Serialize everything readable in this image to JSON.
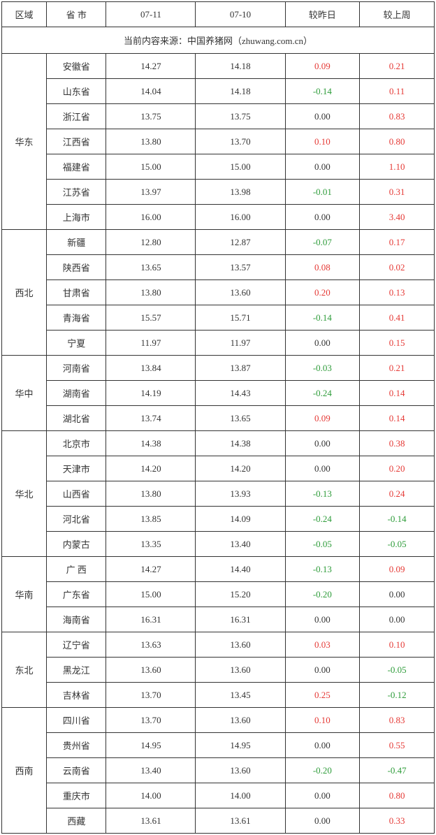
{
  "headers": {
    "region": "区域",
    "province": "省 市",
    "d1": "07-11",
    "d2": "07-10",
    "vs_yesterday": "较昨日",
    "vs_lastweek": "较上周"
  },
  "source": "当前内容来源：中国养猪网（zhuwang.com.cn）",
  "regions": [
    {
      "name": "华东",
      "rows": [
        {
          "prov": "安徽省",
          "d1": "14.27",
          "d2": "14.18",
          "dy": "0.09",
          "dyDir": "up",
          "dw": "0.21",
          "dwDir": "up"
        },
        {
          "prov": "山东省",
          "d1": "14.04",
          "d2": "14.18",
          "dy": "-0.14",
          "dyDir": "down",
          "dw": "0.11",
          "dwDir": "up"
        },
        {
          "prov": "浙江省",
          "d1": "13.75",
          "d2": "13.75",
          "dy": "0.00",
          "dyDir": "zero",
          "dw": "0.83",
          "dwDir": "up"
        },
        {
          "prov": "江西省",
          "d1": "13.80",
          "d2": "13.70",
          "dy": "0.10",
          "dyDir": "up",
          "dw": "0.80",
          "dwDir": "up"
        },
        {
          "prov": "福建省",
          "d1": "15.00",
          "d2": "15.00",
          "dy": "0.00",
          "dyDir": "zero",
          "dw": "1.10",
          "dwDir": "up"
        },
        {
          "prov": "江苏省",
          "d1": "13.97",
          "d2": "13.98",
          "dy": "-0.01",
          "dyDir": "down",
          "dw": "0.31",
          "dwDir": "up"
        },
        {
          "prov": "上海市",
          "d1": "16.00",
          "d2": "16.00",
          "dy": "0.00",
          "dyDir": "zero",
          "dw": "3.40",
          "dwDir": "up"
        }
      ]
    },
    {
      "name": "西北",
      "rows": [
        {
          "prov": "新疆",
          "d1": "12.80",
          "d2": "12.87",
          "dy": "-0.07",
          "dyDir": "down",
          "dw": "0.17",
          "dwDir": "up"
        },
        {
          "prov": "陕西省",
          "d1": "13.65",
          "d2": "13.57",
          "dy": "0.08",
          "dyDir": "up",
          "dw": "0.02",
          "dwDir": "up"
        },
        {
          "prov": "甘肃省",
          "d1": "13.80",
          "d2": "13.60",
          "dy": "0.20",
          "dyDir": "up",
          "dw": "0.13",
          "dwDir": "up"
        },
        {
          "prov": "青海省",
          "d1": "15.57",
          "d2": "15.71",
          "dy": "-0.14",
          "dyDir": "down",
          "dw": "0.41",
          "dwDir": "up"
        },
        {
          "prov": "宁夏",
          "d1": "11.97",
          "d2": "11.97",
          "dy": "0.00",
          "dyDir": "zero",
          "dw": "0.15",
          "dwDir": "up"
        }
      ]
    },
    {
      "name": "华中",
      "rows": [
        {
          "prov": "河南省",
          "d1": "13.84",
          "d2": "13.87",
          "dy": "-0.03",
          "dyDir": "down",
          "dw": "0.21",
          "dwDir": "up"
        },
        {
          "prov": "湖南省",
          "d1": "14.19",
          "d2": "14.43",
          "dy": "-0.24",
          "dyDir": "down",
          "dw": "0.14",
          "dwDir": "up"
        },
        {
          "prov": "湖北省",
          "d1": "13.74",
          "d2": "13.65",
          "dy": "0.09",
          "dyDir": "up",
          "dw": "0.14",
          "dwDir": "up"
        }
      ]
    },
    {
      "name": "华北",
      "rows": [
        {
          "prov": "北京市",
          "d1": "14.38",
          "d2": "14.38",
          "dy": "0.00",
          "dyDir": "zero",
          "dw": "0.38",
          "dwDir": "up"
        },
        {
          "prov": "天津市",
          "d1": "14.20",
          "d2": "14.20",
          "dy": "0.00",
          "dyDir": "zero",
          "dw": "0.20",
          "dwDir": "up"
        },
        {
          "prov": "山西省",
          "d1": "13.80",
          "d2": "13.93",
          "dy": "-0.13",
          "dyDir": "down",
          "dw": "0.24",
          "dwDir": "up"
        },
        {
          "prov": "河北省",
          "d1": "13.85",
          "d2": "14.09",
          "dy": "-0.24",
          "dyDir": "down",
          "dw": "-0.14",
          "dwDir": "down"
        },
        {
          "prov": "内蒙古",
          "d1": "13.35",
          "d2": "13.40",
          "dy": "-0.05",
          "dyDir": "down",
          "dw": "-0.05",
          "dwDir": "down"
        }
      ]
    },
    {
      "name": "华南",
      "rows": [
        {
          "prov": "广 西",
          "d1": "14.27",
          "d2": "14.40",
          "dy": "-0.13",
          "dyDir": "down",
          "dw": "0.09",
          "dwDir": "up"
        },
        {
          "prov": "广东省",
          "d1": "15.00",
          "d2": "15.20",
          "dy": "-0.20",
          "dyDir": "down",
          "dw": "0.00",
          "dwDir": "zero"
        },
        {
          "prov": "海南省",
          "d1": "16.31",
          "d2": "16.31",
          "dy": "0.00",
          "dyDir": "zero",
          "dw": "0.00",
          "dwDir": "zero"
        }
      ]
    },
    {
      "name": "东北",
      "rows": [
        {
          "prov": "辽宁省",
          "d1": "13.63",
          "d2": "13.60",
          "dy": "0.03",
          "dyDir": "up",
          "dw": "0.10",
          "dwDir": "up"
        },
        {
          "prov": "黑龙江",
          "d1": "13.60",
          "d2": "13.60",
          "dy": "0.00",
          "dyDir": "zero",
          "dw": "-0.05",
          "dwDir": "down"
        },
        {
          "prov": "吉林省",
          "d1": "13.70",
          "d2": "13.45",
          "dy": "0.25",
          "dyDir": "up",
          "dw": "-0.12",
          "dwDir": "down"
        }
      ]
    },
    {
      "name": "西南",
      "rows": [
        {
          "prov": "四川省",
          "d1": "13.70",
          "d2": "13.60",
          "dy": "0.10",
          "dyDir": "up",
          "dw": "0.83",
          "dwDir": "up"
        },
        {
          "prov": "贵州省",
          "d1": "14.95",
          "d2": "14.95",
          "dy": "0.00",
          "dyDir": "zero",
          "dw": "0.55",
          "dwDir": "up"
        },
        {
          "prov": "云南省",
          "d1": "13.40",
          "d2": "13.60",
          "dy": "-0.20",
          "dyDir": "down",
          "dw": "-0.47",
          "dwDir": "down"
        },
        {
          "prov": "重庆市",
          "d1": "14.00",
          "d2": "14.00",
          "dy": "0.00",
          "dyDir": "zero",
          "dw": "0.80",
          "dwDir": "up"
        },
        {
          "prov": "西藏",
          "d1": "13.61",
          "d2": "13.61",
          "dy": "0.00",
          "dyDir": "zero",
          "dw": "0.33",
          "dwDir": "up"
        }
      ]
    }
  ]
}
